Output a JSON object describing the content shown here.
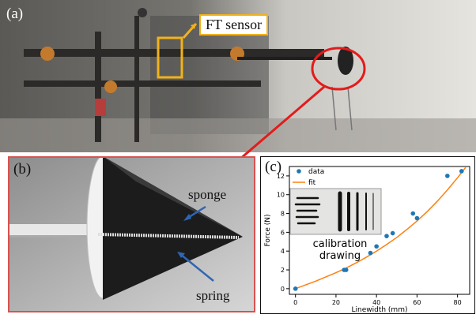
{
  "panel_a": {
    "label": "(a)",
    "callout": "FT sensor"
  },
  "panel_b": {
    "label": "(b)",
    "annotations": {
      "sponge": "sponge",
      "spring": "spring"
    }
  },
  "panel_c": {
    "label": "(c)",
    "inset_text": [
      "calibration",
      "drawing"
    ]
  },
  "colors": {
    "data": "#1f77b4",
    "fit": "#ff7f0e",
    "callout_border": "#f2b21a",
    "highlight": "#e31b1b"
  },
  "chart_data": {
    "type": "scatter",
    "xlabel": "Linewidth (mm)",
    "ylabel": "Force (N)",
    "xlim": [
      -3,
      86
    ],
    "ylim": [
      -0.6,
      13
    ],
    "xticks": [
      0,
      20,
      40,
      60,
      80
    ],
    "yticks": [
      0,
      2,
      4,
      6,
      8,
      10,
      12
    ],
    "legend": {
      "position": "top-left",
      "entries": [
        "data",
        "fit"
      ]
    },
    "series": [
      {
        "name": "data",
        "kind": "points",
        "x": [
          0,
          24,
          25,
          37,
          40,
          45,
          48,
          58,
          60,
          75,
          82
        ],
        "y": [
          0.0,
          2.0,
          2.0,
          3.8,
          4.5,
          5.6,
          5.9,
          8.0,
          7.5,
          12.0,
          12.5
        ]
      },
      {
        "name": "fit",
        "kind": "line",
        "x": [
          0,
          5,
          10,
          15,
          20,
          25,
          30,
          35,
          40,
          45,
          50,
          55,
          60,
          65,
          70,
          75,
          80,
          84
        ],
        "y": [
          0.0,
          0.4,
          0.8,
          1.25,
          1.7,
          2.2,
          2.75,
          3.35,
          4.0,
          4.7,
          5.45,
          6.3,
          7.2,
          8.2,
          9.3,
          10.5,
          11.8,
          12.9
        ]
      }
    ]
  }
}
